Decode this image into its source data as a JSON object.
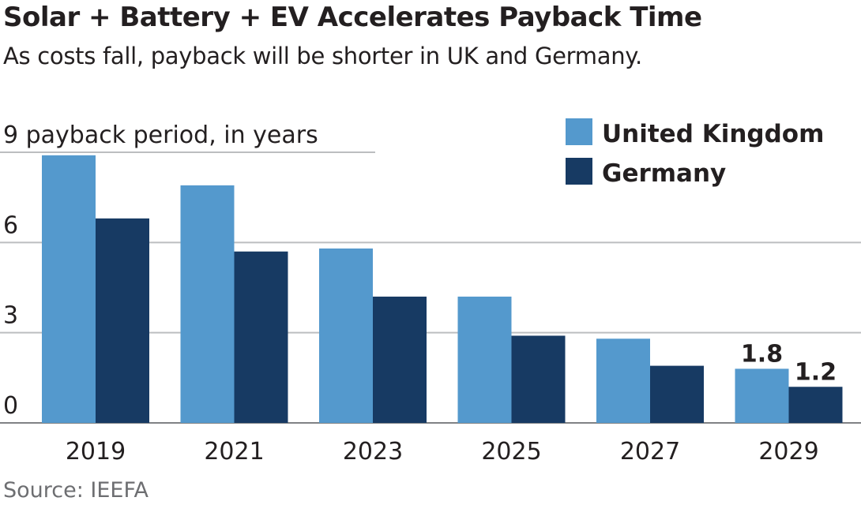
{
  "title": "Solar + Battery + EV Accelerates Payback Time",
  "subtitle": "As costs fall, payback will be shorter in UK and Germany.",
  "source": "Source: IEEFA",
  "chart_data": {
    "type": "bar",
    "title": "Solar + Battery + EV Accelerates Payback Time",
    "ylabel": "payback period, in years",
    "categories": [
      "2019",
      "2021",
      "2023",
      "2025",
      "2027",
      "2029"
    ],
    "series": [
      {
        "name": "United Kingdom",
        "color": "#5499cd",
        "values": [
          8.9,
          7.9,
          5.8,
          4.2,
          2.8,
          1.8
        ]
      },
      {
        "name": "Germany",
        "color": "#173a63",
        "values": [
          6.8,
          5.7,
          4.2,
          2.9,
          1.9,
          1.2
        ]
      }
    ],
    "data_labels": [
      {
        "series": 0,
        "index": 5,
        "text": "1.8"
      },
      {
        "series": 1,
        "index": 5,
        "text": "1.2"
      }
    ],
    "yticks": [
      "0",
      "3",
      "6",
      "9"
    ],
    "ylim": [
      0,
      9
    ],
    "legend": "top-right",
    "grid": true
  }
}
